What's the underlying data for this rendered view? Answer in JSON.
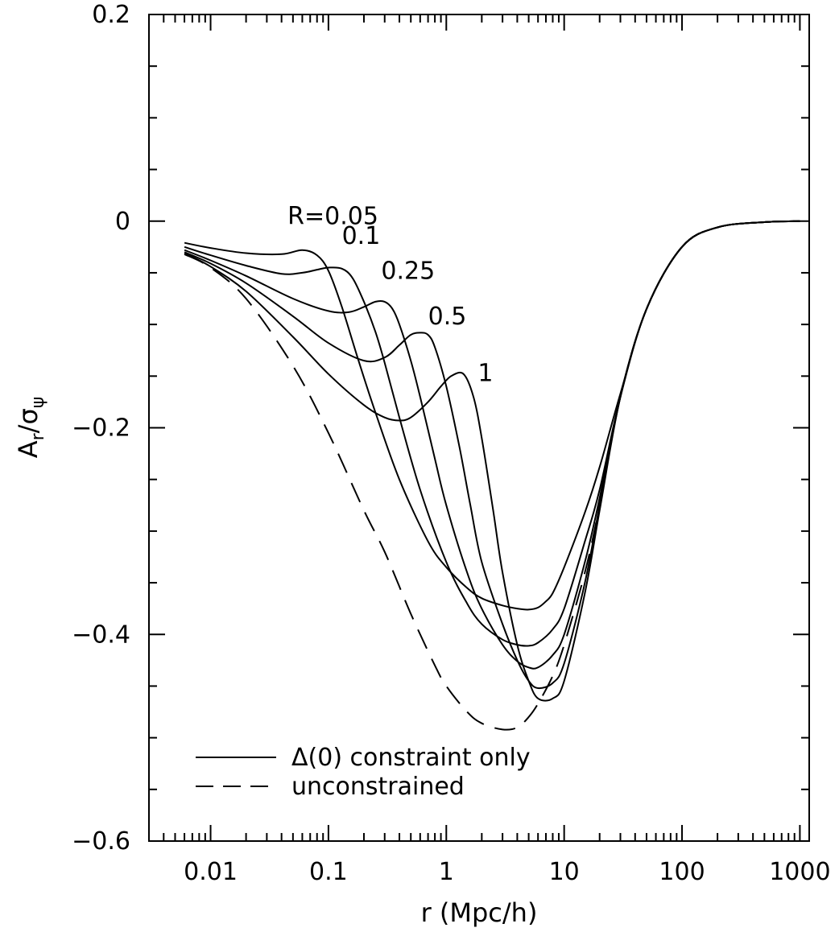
{
  "chart_data": {
    "type": "line",
    "title": "",
    "xlabel": "r (Mpc/h)",
    "ylabel": {
      "main": "A",
      "sub_r": "r",
      "div": "/σ",
      "sub_psi": "ψ"
    },
    "x_scale": "log",
    "xlim": [
      0.003,
      1200
    ],
    "ylim": [
      -0.6,
      0.2
    ],
    "x_ticks": [
      {
        "value": 0.01,
        "label": "0.01"
      },
      {
        "value": 0.1,
        "label": "0.1"
      },
      {
        "value": 1,
        "label": "1"
      },
      {
        "value": 10,
        "label": "10"
      },
      {
        "value": 100,
        "label": "100"
      },
      {
        "value": 1000,
        "label": "1000"
      }
    ],
    "y_ticks": [
      {
        "value": 0.2,
        "label": "0.2"
      },
      {
        "value": 0,
        "label": "0"
      },
      {
        "value": -0.2,
        "label": "−0.2"
      },
      {
        "value": -0.4,
        "label": "−0.4"
      },
      {
        "value": -0.6,
        "label": "−0.6"
      }
    ],
    "grid": false,
    "legend_position": "bottom-left",
    "legend": [
      {
        "label": "Δ(0) constraint only",
        "style": "solid"
      },
      {
        "label": "unconstrained",
        "style": "dashed"
      }
    ],
    "series": [
      {
        "name": "R=0.05",
        "style": "solid",
        "label_text": "R=0.05",
        "label_at": [
          0.045,
          -0.003
        ],
        "x": [
          0.006,
          0.01,
          0.02,
          0.04,
          0.06,
          0.08,
          0.1,
          0.13,
          0.18,
          0.25,
          0.4,
          0.7,
          1,
          1.5,
          2,
          3,
          4,
          5,
          6,
          7,
          8,
          10,
          15,
          20,
          30,
          50,
          100,
          200,
          500,
          1000
        ],
        "y": [
          -0.021,
          -0.026,
          -0.031,
          -0.032,
          -0.028,
          -0.033,
          -0.048,
          -0.083,
          -0.135,
          -0.185,
          -0.25,
          -0.31,
          -0.335,
          -0.355,
          -0.365,
          -0.372,
          -0.375,
          -0.376,
          -0.374,
          -0.368,
          -0.36,
          -0.335,
          -0.282,
          -0.238,
          -0.167,
          -0.085,
          -0.025,
          -0.006,
          -0.001,
          0
        ]
      },
      {
        "name": "0.1",
        "style": "solid",
        "label_text": "0.1",
        "label_at": [
          0.13,
          -0.022
        ],
        "x": [
          0.006,
          0.01,
          0.02,
          0.04,
          0.06,
          0.08,
          0.1,
          0.13,
          0.16,
          0.2,
          0.25,
          0.3,
          0.4,
          0.6,
          1,
          1.5,
          2,
          3,
          4,
          5,
          6,
          8,
          10,
          15,
          20,
          30,
          50,
          100,
          200,
          500,
          1000
        ],
        "y": [
          -0.025,
          -0.033,
          -0.043,
          -0.051,
          -0.05,
          -0.047,
          -0.045,
          -0.046,
          -0.055,
          -0.078,
          -0.107,
          -0.137,
          -0.19,
          -0.26,
          -0.33,
          -0.37,
          -0.39,
          -0.405,
          -0.41,
          -0.411,
          -0.408,
          -0.395,
          -0.375,
          -0.31,
          -0.26,
          -0.17,
          -0.085,
          -0.025,
          -0.006,
          -0.001,
          0
        ]
      },
      {
        "name": "0.25",
        "style": "solid",
        "label_text": "0.25",
        "label_at": [
          0.28,
          -0.056
        ],
        "x": [
          0.006,
          0.01,
          0.02,
          0.05,
          0.1,
          0.15,
          0.2,
          0.25,
          0.3,
          0.35,
          0.4,
          0.5,
          0.6,
          0.8,
          1,
          1.5,
          2,
          3,
          4,
          5,
          6,
          8,
          10,
          15,
          20,
          30,
          50,
          100,
          200,
          500,
          1000
        ],
        "y": [
          -0.028,
          -0.038,
          -0.053,
          -0.075,
          -0.087,
          -0.088,
          -0.083,
          -0.078,
          -0.078,
          -0.085,
          -0.1,
          -0.135,
          -0.17,
          -0.23,
          -0.275,
          -0.34,
          -0.375,
          -0.41,
          -0.426,
          -0.432,
          -0.432,
          -0.42,
          -0.4,
          -0.33,
          -0.268,
          -0.17,
          -0.085,
          -0.025,
          -0.006,
          -0.001,
          0
        ]
      },
      {
        "name": "0.5",
        "style": "solid",
        "label_text": "0.5",
        "label_at": [
          0.7,
          -0.1
        ],
        "x": [
          0.006,
          0.01,
          0.02,
          0.05,
          0.1,
          0.2,
          0.3,
          0.4,
          0.5,
          0.6,
          0.7,
          0.8,
          1,
          1.3,
          1.6,
          2,
          3,
          4,
          5,
          6,
          8,
          10,
          15,
          20,
          30,
          50,
          100,
          200,
          500,
          1000
        ],
        "y": [
          -0.03,
          -0.041,
          -0.06,
          -0.092,
          -0.118,
          -0.135,
          -0.132,
          -0.12,
          -0.11,
          -0.108,
          -0.11,
          -0.122,
          -0.16,
          -0.22,
          -0.275,
          -0.33,
          -0.39,
          -0.425,
          -0.445,
          -0.452,
          -0.447,
          -0.428,
          -0.35,
          -0.275,
          -0.17,
          -0.085,
          -0.025,
          -0.006,
          -0.001,
          0
        ]
      },
      {
        "name": "1",
        "style": "solid",
        "label_text": "1",
        "label_at": [
          1.85,
          -0.155
        ],
        "x": [
          0.006,
          0.01,
          0.02,
          0.05,
          0.1,
          0.2,
          0.3,
          0.4,
          0.5,
          0.7,
          0.9,
          1.1,
          1.4,
          1.7,
          2,
          2.5,
          3,
          4,
          5,
          6,
          8,
          10,
          15,
          20,
          30,
          50,
          100,
          200,
          500,
          1000
        ],
        "y": [
          -0.031,
          -0.044,
          -0.068,
          -0.112,
          -0.148,
          -0.178,
          -0.19,
          -0.193,
          -0.19,
          -0.175,
          -0.16,
          -0.15,
          -0.148,
          -0.17,
          -0.21,
          -0.28,
          -0.34,
          -0.41,
          -0.445,
          -0.462,
          -0.462,
          -0.445,
          -0.36,
          -0.28,
          -0.17,
          -0.085,
          -0.025,
          -0.006,
          -0.001,
          0
        ]
      },
      {
        "name": "unconstrained",
        "style": "dashed",
        "x": [
          0.006,
          0.01,
          0.02,
          0.05,
          0.1,
          0.2,
          0.3,
          0.5,
          0.8,
          1,
          1.5,
          2,
          3,
          4,
          5,
          6,
          8,
          10,
          15,
          20,
          30,
          50,
          100,
          200,
          500,
          1000
        ],
        "y": [
          -0.032,
          -0.045,
          -0.075,
          -0.14,
          -0.205,
          -0.28,
          -0.32,
          -0.38,
          -0.43,
          -0.45,
          -0.475,
          -0.486,
          -0.492,
          -0.49,
          -0.48,
          -0.467,
          -0.44,
          -0.41,
          -0.34,
          -0.275,
          -0.17,
          -0.085,
          -0.025,
          -0.006,
          -0.001,
          0
        ]
      }
    ]
  }
}
